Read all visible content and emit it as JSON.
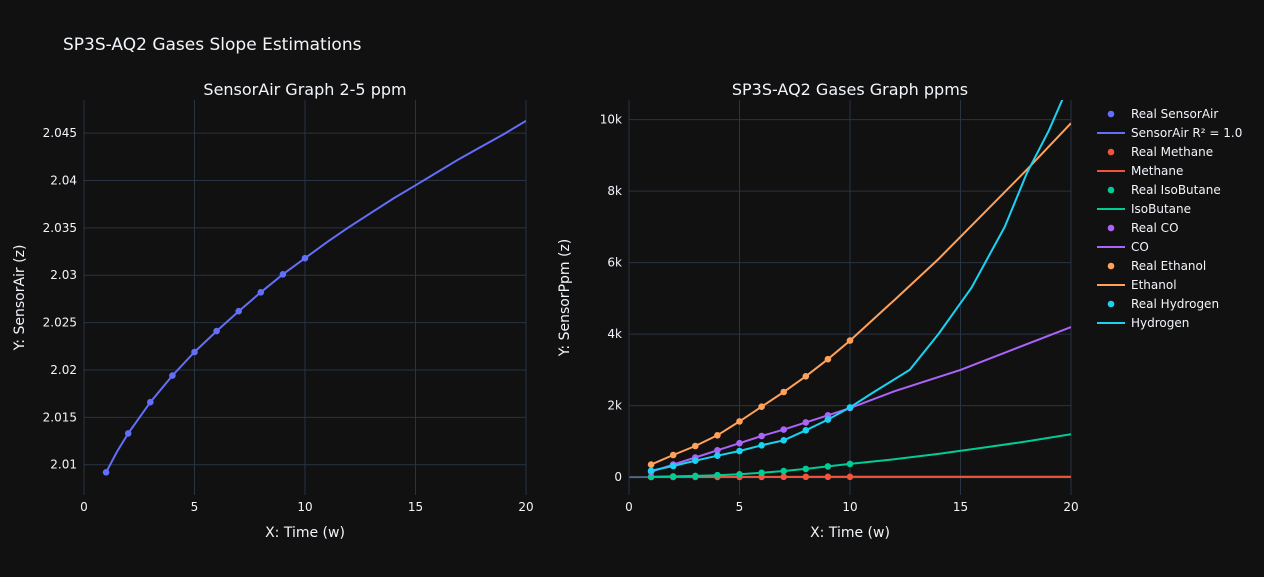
{
  "title": "SP3S-AQ2 Gases Slope Estimations",
  "colors": {
    "background": "#111111",
    "grid": "#283442",
    "text": "#f2f5fa"
  },
  "chart_data": [
    {
      "type": "scatter",
      "title": "SensorAir Graph 2-5 ppm",
      "xlabel": "X: Time (w)",
      "ylabel": "Y: SensorAir (z)",
      "xlim": [
        0,
        20
      ],
      "ylim": [
        2.0068,
        2.0485
      ],
      "x_ticks": [
        0,
        5,
        10,
        15,
        20
      ],
      "y_ticks": [
        2.01,
        2.015,
        2.02,
        2.025,
        2.03,
        2.035,
        2.04,
        2.045
      ],
      "y_tick_labels": [
        "2.01",
        "2.015",
        "2.02",
        "2.025",
        "2.03",
        "2.035",
        "2.04",
        "2.045"
      ],
      "grid": true,
      "series": [
        {
          "name": "Real SensorAir",
          "mode": "markers",
          "color": "#636efa",
          "x": [
            1,
            2,
            3,
            4,
            5,
            6,
            7,
            8,
            9,
            10
          ],
          "y": [
            2.0092,
            2.0133,
            2.0166,
            2.0194,
            2.0219,
            2.0241,
            2.0262,
            2.0282,
            2.0301,
            2.0318
          ]
        },
        {
          "name": "SensorAir R² = 1.0",
          "mode": "lines",
          "color": "#636efa",
          "x": [
            1,
            1.5,
            2,
            3,
            4,
            5,
            6,
            7,
            8,
            9,
            10,
            11,
            12,
            13,
            14,
            15,
            16,
            17,
            18,
            19,
            20
          ],
          "y": [
            2.0092,
            2.0114,
            2.0133,
            2.0166,
            2.0194,
            2.0219,
            2.0241,
            2.0262,
            2.0282,
            2.0301,
            2.0318,
            2.0335,
            2.0351,
            2.0366,
            2.0381,
            2.0395,
            2.0409,
            2.0423,
            2.0436,
            2.0449,
            2.0463
          ]
        }
      ]
    },
    {
      "type": "scatter",
      "title": "SP3S-AQ2 Gases Graph ppms",
      "xlabel": "X: Time (w)",
      "ylabel": "Y: SensorPpm (z)",
      "xlim": [
        0,
        20
      ],
      "ylim": [
        -500,
        10550
      ],
      "x_ticks": [
        0,
        5,
        10,
        15,
        20
      ],
      "y_ticks": [
        0,
        2000,
        4000,
        6000,
        8000,
        10000
      ],
      "y_tick_labels": [
        "0",
        "2k",
        "4k",
        "6k",
        "8k",
        "10k"
      ],
      "grid": true,
      "legend_position": "right",
      "series": [
        {
          "name": "Real Methane",
          "mode": "markers",
          "color": "#ef553b",
          "x": [
            1,
            2,
            3,
            4,
            5,
            6,
            7,
            8,
            9,
            10
          ],
          "y": [
            3,
            4,
            5,
            6,
            7,
            7,
            8,
            8,
            9,
            9
          ]
        },
        {
          "name": "Methane",
          "mode": "lines",
          "color": "#ef553b",
          "x": [
            1,
            5,
            10,
            15,
            20
          ],
          "y": [
            3,
            7,
            9,
            11,
            12
          ]
        },
        {
          "name": "Real IsoButane",
          "mode": "markers",
          "color": "#00cc96",
          "x": [
            1,
            2,
            3,
            4,
            5,
            6,
            7,
            8,
            9,
            10
          ],
          "y": [
            10,
            20,
            35,
            55,
            80,
            120,
            170,
            230,
            300,
            370
          ]
        },
        {
          "name": "IsoButane",
          "mode": "lines",
          "color": "#00cc96",
          "x": [
            1,
            2,
            3,
            4,
            5,
            6,
            7,
            8,
            9,
            10,
            12,
            14,
            16,
            18,
            20
          ],
          "y": [
            10,
            20,
            35,
            55,
            80,
            120,
            170,
            230,
            300,
            370,
            500,
            650,
            820,
            1000,
            1200
          ]
        },
        {
          "name": "Real CO",
          "mode": "markers",
          "color": "#ab63fa",
          "x": [
            1,
            2,
            3,
            4,
            5,
            6,
            7,
            8,
            9,
            10
          ],
          "y": [
            150,
            350,
            550,
            750,
            950,
            1150,
            1330,
            1530,
            1730,
            1930
          ]
        },
        {
          "name": "CO",
          "mode": "lines",
          "color": "#ab63fa",
          "x": [
            1,
            2,
            3,
            4,
            5,
            6,
            7,
            8,
            9,
            10,
            12,
            15,
            17.5,
            20
          ],
          "y": [
            150,
            350,
            550,
            750,
            950,
            1150,
            1330,
            1530,
            1730,
            1930,
            2400,
            3000,
            3600,
            4200
          ]
        },
        {
          "name": "Real Ethanol",
          "mode": "markers",
          "color": "#ffa15a",
          "x": [
            1,
            2,
            3,
            4,
            5,
            6,
            7,
            8,
            9,
            10
          ],
          "y": [
            350,
            620,
            870,
            1170,
            1560,
            1970,
            2380,
            2820,
            3300,
            3820
          ]
        },
        {
          "name": "Ethanol",
          "mode": "lines",
          "color": "#ffa15a",
          "x": [
            1,
            2,
            3,
            4,
            5,
            6,
            7,
            8,
            9,
            10,
            12,
            14,
            16,
            18,
            20
          ],
          "y": [
            350,
            620,
            870,
            1170,
            1560,
            1970,
            2380,
            2820,
            3300,
            3820,
            4950,
            6100,
            7350,
            8600,
            9900
          ]
        },
        {
          "name": "Real Hydrogen",
          "mode": "markers",
          "color": "#19d3f3",
          "x": [
            1,
            2,
            3,
            4,
            5,
            6,
            7,
            8,
            9,
            10
          ],
          "y": [
            180,
            310,
            460,
            600,
            730,
            890,
            1030,
            1310,
            1610,
            1950
          ]
        },
        {
          "name": "Hydrogen",
          "mode": "lines",
          "color": "#19d3f3",
          "x": [
            1,
            2,
            3,
            4,
            5,
            6,
            7,
            8,
            9,
            10,
            11,
            12.7,
            14,
            15.5,
            17,
            18,
            19,
            19.6
          ],
          "y": [
            180,
            310,
            460,
            600,
            730,
            890,
            1030,
            1310,
            1610,
            1950,
            2350,
            3000,
            4000,
            5300,
            7000,
            8500,
            9700,
            10550
          ]
        }
      ]
    }
  ]
}
